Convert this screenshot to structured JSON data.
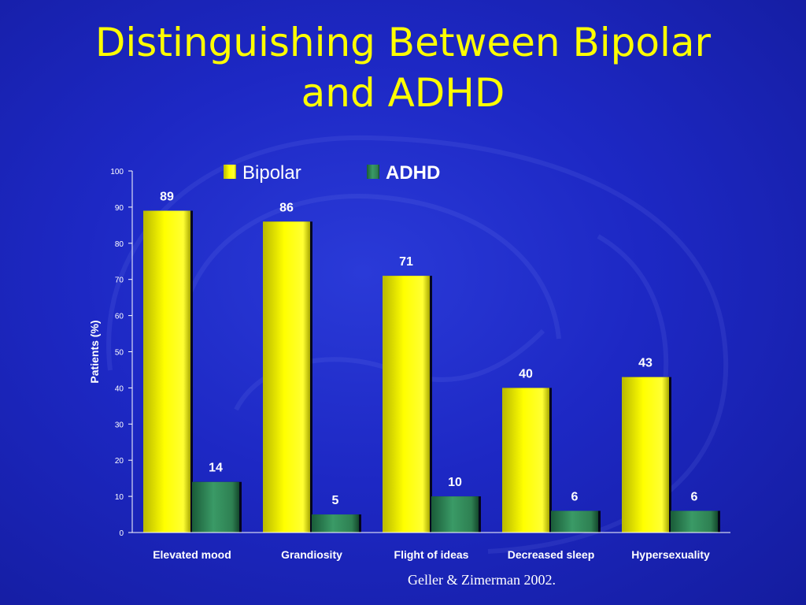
{
  "title": {
    "line1": "Distinguishing Between Bipolar",
    "line2": "and ADHD"
  },
  "citation": "Geller & Zimerman 2002.",
  "colors": {
    "background": "#1d28c4",
    "bipolar": "#ffff00",
    "adhd": "#2e8b57",
    "text": "#ffffff"
  },
  "chart_data": {
    "type": "bar",
    "title": "",
    "xlabel": "",
    "ylabel": "Patients (%)",
    "ylim": [
      0,
      100
    ],
    "yticks": [
      0,
      10,
      20,
      30,
      40,
      50,
      60,
      70,
      80,
      90,
      100
    ],
    "categories": [
      "Elevated mood",
      "Grandiosity",
      "Flight of ideas",
      "Decreased sleep",
      "Hypersexuality"
    ],
    "series": [
      {
        "name": "Bipolar",
        "values": [
          89,
          86,
          71,
          40,
          43
        ],
        "color": "#ffff00"
      },
      {
        "name": "ADHD",
        "values": [
          14,
          5,
          10,
          6,
          6
        ],
        "color": "#2e8b57"
      }
    ],
    "legend_position": "top",
    "grid": false
  }
}
